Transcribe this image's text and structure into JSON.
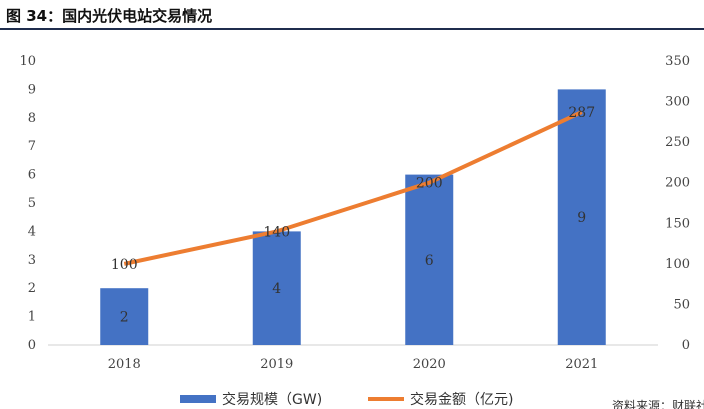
{
  "figure_title": "图 34：国内光伏电站交易情况",
  "footer_text": "资料来源：财联社",
  "colors": {
    "bar": "#4472c4",
    "line": "#ed7d31"
  },
  "chart_data": {
    "type": "bar",
    "categories": [
      "2018",
      "2019",
      "2020",
      "2021"
    ],
    "series": [
      {
        "name": "交易规模（GW)",
        "type": "bar",
        "axis": "left",
        "values": [
          2,
          4,
          6,
          9
        ]
      },
      {
        "name": "交易金额（亿元)",
        "type": "line",
        "axis": "right",
        "values": [
          100,
          140,
          200,
          287
        ]
      }
    ],
    "y_left": {
      "min": 0,
      "max": 10,
      "ticks": [
        0,
        1,
        2,
        3,
        4,
        5,
        6,
        7,
        8,
        9,
        10
      ]
    },
    "y_right": {
      "min": 0,
      "max": 350,
      "ticks": [
        0,
        50,
        100,
        150,
        200,
        250,
        300,
        350
      ]
    },
    "grid": false,
    "legend_position": "bottom"
  }
}
